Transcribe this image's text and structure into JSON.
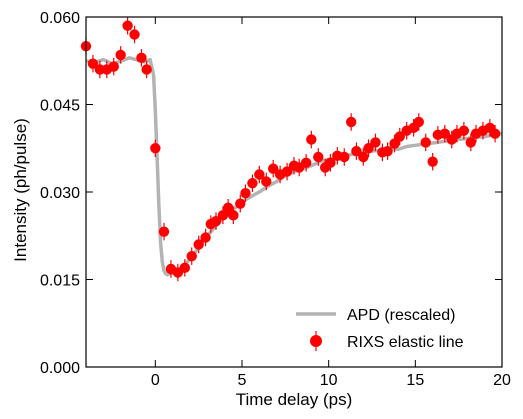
{
  "chart_data": {
    "type": "scatter",
    "xlabel": "Time delay (ps)",
    "ylabel": "Intensity (ph/pulse)",
    "xlim": [
      -4,
      20
    ],
    "ylim": [
      0.0,
      0.06
    ],
    "x_ticks": [
      0,
      5,
      10,
      15,
      20
    ],
    "x_tick_labels": [
      "0",
      "5",
      "10",
      "15",
      "20"
    ],
    "y_ticks": [
      0.0,
      0.015,
      0.03,
      0.045,
      0.06
    ],
    "y_tick_labels": [
      "0.000",
      "0.015",
      "0.030",
      "0.045",
      "0.060"
    ],
    "legend_position": "bottom-right",
    "series": [
      {
        "name": "APD (rescaled)",
        "kind": "line",
        "color": "#b3b3b3",
        "x": [
          -4.0,
          -3.5,
          -3.0,
          -2.5,
          -2.0,
          -1.5,
          -1.0,
          -0.6,
          -0.3,
          -0.1,
          0.0,
          0.1,
          0.2,
          0.3,
          0.4,
          0.5,
          0.6,
          0.7,
          0.8,
          1.0,
          1.3,
          1.6,
          2.0,
          2.5,
          3.0,
          3.5,
          4.0,
          4.5,
          5.0,
          5.5,
          6.0,
          6.5,
          7.0,
          7.5,
          8.0,
          8.5,
          9.0,
          9.5,
          10.0,
          10.5,
          11.0,
          11.5,
          12.0,
          12.5,
          13.0,
          13.5,
          14.0,
          14.5,
          15.0,
          15.5,
          16.0,
          16.5,
          17.0,
          17.5,
          18.0,
          18.5,
          19.0,
          19.5,
          20.0
        ],
        "y": [
          0.0525,
          0.0522,
          0.0527,
          0.052,
          0.0524,
          0.053,
          0.0526,
          0.0523,
          0.0527,
          0.05,
          0.044,
          0.036,
          0.028,
          0.0215,
          0.018,
          0.0165,
          0.016,
          0.0158,
          0.016,
          0.0161,
          0.0165,
          0.0172,
          0.0185,
          0.0205,
          0.0225,
          0.0242,
          0.0258,
          0.027,
          0.0283,
          0.0292,
          0.03,
          0.031,
          0.0318,
          0.0328,
          0.0335,
          0.034,
          0.0345,
          0.0352,
          0.0356,
          0.0358,
          0.0362,
          0.0366,
          0.0368,
          0.037,
          0.0372,
          0.0375,
          0.0373,
          0.0378,
          0.038,
          0.0382,
          0.0384,
          0.0386,
          0.0388,
          0.039,
          0.0392,
          0.0394,
          0.0395,
          0.0398,
          0.04
        ]
      },
      {
        "name": "RIXS elastic line",
        "kind": "scatter_errorbar",
        "color": "#ff0000",
        "x": [
          -4.0,
          -3.6,
          -3.2,
          -2.8,
          -2.4,
          -2.0,
          -1.6,
          -1.2,
          -0.8,
          -0.5,
          0.0,
          0.5,
          0.9,
          1.3,
          1.7,
          2.1,
          2.5,
          2.9,
          3.2,
          3.5,
          3.9,
          4.2,
          4.5,
          4.9,
          5.2,
          5.6,
          6.0,
          6.4,
          6.8,
          7.2,
          7.6,
          8.0,
          8.3,
          8.7,
          9.0,
          9.4,
          9.8,
          10.1,
          10.5,
          10.9,
          11.3,
          11.6,
          12.0,
          12.3,
          12.7,
          13.1,
          13.4,
          13.8,
          14.1,
          14.5,
          14.9,
          15.2,
          15.6,
          16.0,
          16.3,
          16.7,
          17.1,
          17.4,
          17.8,
          18.2,
          18.5,
          18.9,
          19.3,
          19.6
        ],
        "y": [
          0.055,
          0.052,
          0.051,
          0.051,
          0.0515,
          0.0535,
          0.0585,
          0.057,
          0.053,
          0.051,
          0.0375,
          0.0232,
          0.0168,
          0.0162,
          0.017,
          0.019,
          0.021,
          0.0222,
          0.0245,
          0.025,
          0.026,
          0.0273,
          0.026,
          0.028,
          0.0298,
          0.0315,
          0.033,
          0.0318,
          0.034,
          0.033,
          0.0335,
          0.0345,
          0.0342,
          0.035,
          0.039,
          0.036,
          0.0342,
          0.035,
          0.0362,
          0.036,
          0.042,
          0.037,
          0.036,
          0.0375,
          0.0385,
          0.0368,
          0.037,
          0.0383,
          0.0395,
          0.0405,
          0.041,
          0.042,
          0.0385,
          0.0352,
          0.0398,
          0.04,
          0.039,
          0.04,
          0.0405,
          0.0385,
          0.04,
          0.0405,
          0.041,
          0.04
        ],
        "yerr": 0.0015
      }
    ]
  }
}
